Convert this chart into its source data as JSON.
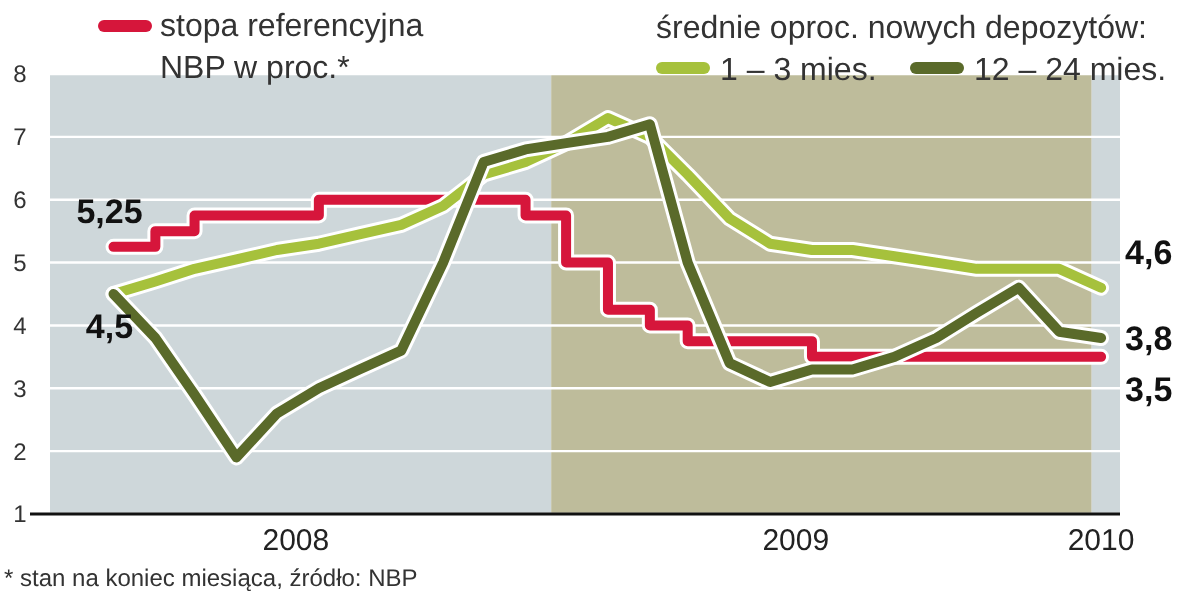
{
  "chart_data": {
    "type": "line",
    "legend_title": "średnie oproc. nowych depozytów:",
    "x": [
      "2008-01",
      "2008-02",
      "2008-03",
      "2008-04",
      "2008-05",
      "2008-06",
      "2008-07",
      "2008-08",
      "2008-09",
      "2008-10",
      "2008-11",
      "2008-12",
      "2009-01",
      "2009-02",
      "2009-03",
      "2009-04",
      "2009-05",
      "2009-06",
      "2009-07",
      "2009-08",
      "2009-09",
      "2009-10",
      "2009-11",
      "2009-12",
      "2010-01"
    ],
    "series": [
      {
        "name": "stopa referencyjna NBP w proc.*",
        "type": "step",
        "color": "#d6163b",
        "values": [
          5.25,
          5.5,
          5.75,
          5.75,
          5.75,
          6,
          6,
          6,
          6,
          6,
          5.75,
          5.0,
          4.25,
          4.0,
          3.75,
          3.75,
          3.75,
          3.5,
          3.5,
          3.5,
          3.5,
          3.5,
          3.5,
          3.5,
          3.5
        ]
      },
      {
        "name": "1 – 3 mies.",
        "color": "#a6c13c",
        "values": [
          4.5,
          4.7,
          4.9,
          5.05,
          5.2,
          5.3,
          5.45,
          5.6,
          5.9,
          6.4,
          6.6,
          6.9,
          7.3,
          7.0,
          6.4,
          5.7,
          5.3,
          5.2,
          5.2,
          5.1,
          5.0,
          4.9,
          4.9,
          4.9,
          4.6
        ]
      },
      {
        "name": "12 – 24 mies.",
        "color": "#5a6a2a",
        "values": [
          4.5,
          3.8,
          2.9,
          1.9,
          2.6,
          3.0,
          3.3,
          3.6,
          5.0,
          6.6,
          6.8,
          6.9,
          7.0,
          7.2,
          5.0,
          3.4,
          3.1,
          3.3,
          3.3,
          3.5,
          3.8,
          4.2,
          4.6,
          3.9,
          3.8
        ]
      }
    ],
    "xlim": [
      "2007-11-15",
      "2010-01-15"
    ],
    "xticks": [
      {
        "value": "2008-05-15",
        "label": "2008"
      },
      {
        "value": "2009-05-20",
        "label": "2009"
      },
      {
        "value": "2010-01-01",
        "label": "2010"
      }
    ],
    "ylim": [
      1,
      8
    ],
    "yticks": [
      1,
      2,
      3,
      4,
      5,
      6,
      7,
      8
    ],
    "grid": "y",
    "legend": "top",
    "bands": [
      {
        "axis": "x",
        "from": "2007-11-15",
        "to": "2008-11-20",
        "color": "#c5d0d3"
      },
      {
        "axis": "x",
        "from": "2008-11-20",
        "to": "2009-12-25",
        "color": "#b3b08a"
      },
      {
        "axis": "x",
        "from": "2009-12-25",
        "to": "2010-01-15",
        "color": "#c5d0d3"
      }
    ],
    "annotations": [
      {
        "text": "5,25",
        "x": "2008-01",
        "y": 5.25
      },
      {
        "text": "4,5",
        "x": "2008-01",
        "y": 4.5
      },
      {
        "text": "4,6",
        "x": "2010-01",
        "y": 4.6
      },
      {
        "text": "3,8",
        "x": "2010-01",
        "y": 3.8
      },
      {
        "text": "3,5",
        "x": "2010-01",
        "y": 3.5
      },
      "* stan na koniec miesiąca, źródło: NBP"
    ]
  }
}
